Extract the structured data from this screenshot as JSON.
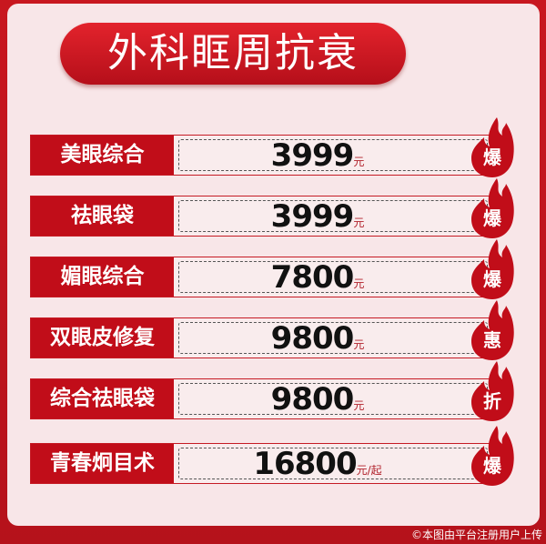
{
  "title": "外科眶周抗衰",
  "items": [
    {
      "name": "美眼综合",
      "price": "3999",
      "unit": "元",
      "badge": "爆"
    },
    {
      "name": "祛眼袋",
      "price": "3999",
      "unit": "元",
      "badge": "爆"
    },
    {
      "name": "媚眼综合",
      "price": "7800",
      "unit": "元",
      "badge": "爆"
    },
    {
      "name": "双眼皮修复",
      "price": "9800",
      "unit": "元",
      "badge": "惠"
    },
    {
      "name": "综合祛眼袋",
      "price": "9800",
      "unit": "元",
      "badge": "折"
    },
    {
      "name": "青春炯目术",
      "price": "16800",
      "unit": "元/起",
      "badge": "爆"
    }
  ],
  "watermark": "©本图由平台注册用户上传",
  "colors": {
    "primary": "#c10d19",
    "background": "#f8e6e8"
  }
}
